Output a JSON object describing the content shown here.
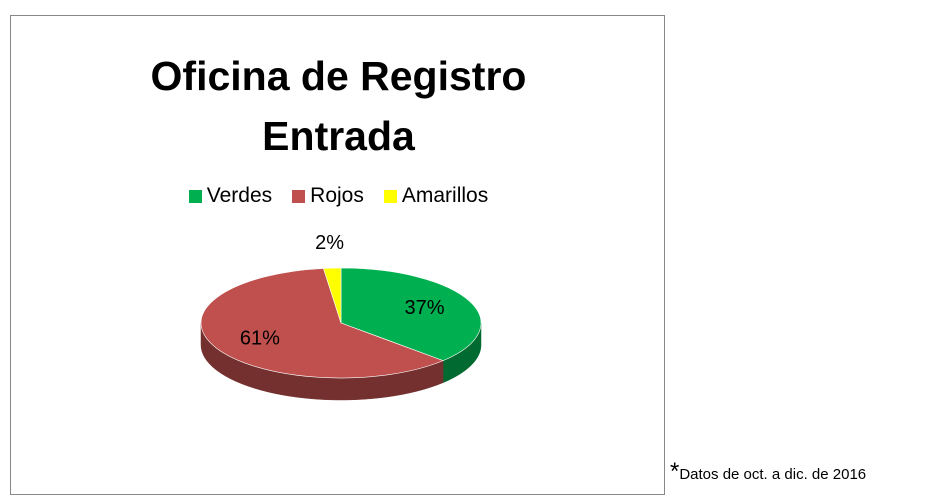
{
  "chart_data": {
    "type": "pie",
    "title": "Oficina de Registro Entrada",
    "categories": [
      "Verdes",
      "Rojos",
      "Amarillos"
    ],
    "values": [
      37,
      61,
      2
    ],
    "value_labels": [
      "37%",
      "61%",
      "2%"
    ],
    "colors": [
      "#00b050",
      "#c0504d",
      "#ffff00"
    ],
    "legend": "top",
    "footnote_mark": "*",
    "footnote": "Datos de oct. a dic. de 2016"
  }
}
